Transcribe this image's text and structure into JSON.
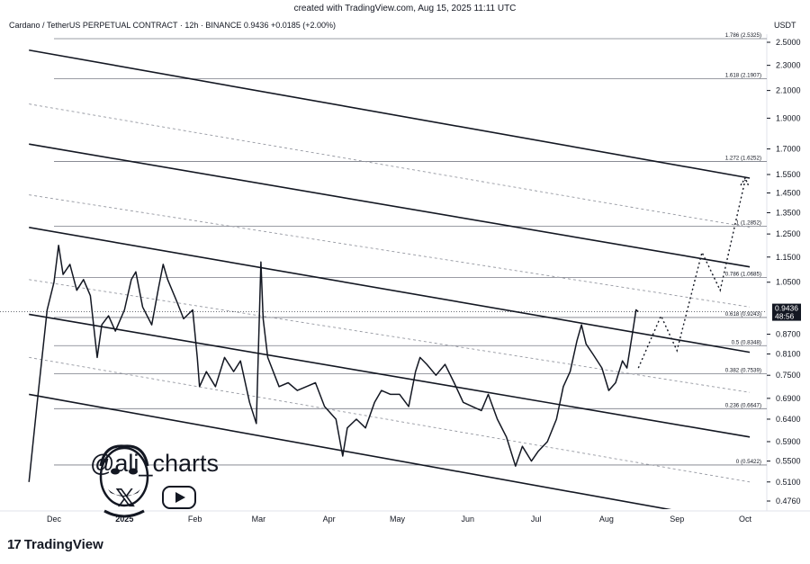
{
  "header": {
    "caption": "created with TradingView.com, Aug 15, 2025 11:11 UTC",
    "symbol_info": "Cardano / TetherUS PERPETUAL CONTRACT · 12h · BINANCE  0.9436  +0.0185 (+2.00%)",
    "currency": "USDT"
  },
  "branding": {
    "handle": "@ali_charts",
    "tv_logo_text": "TradingView",
    "tv_logo_mark": "17",
    "x_icon": "x-logo-icon",
    "youtube_icon": "youtube-icon",
    "avatar_icon": "avatar-caricature-icon"
  },
  "chart_data": {
    "type": "line",
    "symbol": "ADAUSDT",
    "timeframe": "12h",
    "y_scale": "log",
    "ylim": [
      0.45,
      2.62
    ],
    "y_ticks": [
      "2.5000",
      "2.3000",
      "2.1000",
      "1.9000",
      "1.7000",
      "1.5500",
      "1.4500",
      "1.3500",
      "1.2500",
      "1.1500",
      "1.0500",
      "0.8700",
      "0.8100",
      "0.7500",
      "0.6900",
      "0.6400",
      "0.5900",
      "0.5500",
      "0.5100",
      "0.4760"
    ],
    "x_ticks": [
      {
        "label": "Dec",
        "date": "2024-12-01",
        "bold": false
      },
      {
        "label": "2025",
        "date": "2025-01-01",
        "bold": true
      },
      {
        "label": "Feb",
        "date": "2025-02-01",
        "bold": false
      },
      {
        "label": "Mar",
        "date": "2025-03-01",
        "bold": false
      },
      {
        "label": "Apr",
        "date": "2025-04-01",
        "bold": false
      },
      {
        "label": "May",
        "date": "2025-05-01",
        "bold": false
      },
      {
        "label": "Jun",
        "date": "2025-06-01",
        "bold": false
      },
      {
        "label": "Jul",
        "date": "2025-07-01",
        "bold": false
      },
      {
        "label": "Aug",
        "date": "2025-08-01",
        "bold": false
      },
      {
        "label": "Sep",
        "date": "2025-09-01",
        "bold": false
      },
      {
        "label": "Oct",
        "date": "2025-10-01",
        "bold": false
      }
    ],
    "price_series": [
      {
        "date": "2024-11-20",
        "close": 0.51
      },
      {
        "date": "2024-11-24",
        "close": 0.7
      },
      {
        "date": "2024-11-28",
        "close": 0.95
      },
      {
        "date": "2024-12-01",
        "close": 1.05
      },
      {
        "date": "2024-12-03",
        "close": 1.2
      },
      {
        "date": "2024-12-05",
        "close": 1.08
      },
      {
        "date": "2024-12-08",
        "close": 1.12
      },
      {
        "date": "2024-12-11",
        "close": 1.02
      },
      {
        "date": "2024-12-14",
        "close": 1.06
      },
      {
        "date": "2024-12-17",
        "close": 1.0
      },
      {
        "date": "2024-12-19",
        "close": 0.86
      },
      {
        "date": "2024-12-20",
        "close": 0.8
      },
      {
        "date": "2024-12-22",
        "close": 0.9
      },
      {
        "date": "2024-12-25",
        "close": 0.93
      },
      {
        "date": "2024-12-28",
        "close": 0.88
      },
      {
        "date": "2025-01-01",
        "close": 0.95
      },
      {
        "date": "2025-01-04",
        "close": 1.06
      },
      {
        "date": "2025-01-06",
        "close": 1.09
      },
      {
        "date": "2025-01-09",
        "close": 0.96
      },
      {
        "date": "2025-01-13",
        "close": 0.9
      },
      {
        "date": "2025-01-16",
        "close": 1.03
      },
      {
        "date": "2025-01-18",
        "close": 1.12
      },
      {
        "date": "2025-01-20",
        "close": 1.06
      },
      {
        "date": "2025-01-24",
        "close": 0.98
      },
      {
        "date": "2025-01-27",
        "close": 0.92
      },
      {
        "date": "2025-01-31",
        "close": 0.95
      },
      {
        "date": "2025-02-02",
        "close": 0.8
      },
      {
        "date": "2025-02-03",
        "close": 0.72
      },
      {
        "date": "2025-02-06",
        "close": 0.76
      },
      {
        "date": "2025-02-10",
        "close": 0.72
      },
      {
        "date": "2025-02-14",
        "close": 0.8
      },
      {
        "date": "2025-02-18",
        "close": 0.76
      },
      {
        "date": "2025-02-21",
        "close": 0.79
      },
      {
        "date": "2025-02-25",
        "close": 0.68
      },
      {
        "date": "2025-02-28",
        "close": 0.63
      },
      {
        "date": "2025-03-02",
        "close": 1.13
      },
      {
        "date": "2025-03-03",
        "close": 0.92
      },
      {
        "date": "2025-03-05",
        "close": 0.8
      },
      {
        "date": "2025-03-10",
        "close": 0.72
      },
      {
        "date": "2025-03-14",
        "close": 0.73
      },
      {
        "date": "2025-03-18",
        "close": 0.71
      },
      {
        "date": "2025-03-22",
        "close": 0.72
      },
      {
        "date": "2025-03-26",
        "close": 0.73
      },
      {
        "date": "2025-03-30",
        "close": 0.67
      },
      {
        "date": "2025-04-04",
        "close": 0.64
      },
      {
        "date": "2025-04-07",
        "close": 0.56
      },
      {
        "date": "2025-04-09",
        "close": 0.62
      },
      {
        "date": "2025-04-13",
        "close": 0.64
      },
      {
        "date": "2025-04-17",
        "close": 0.62
      },
      {
        "date": "2025-04-21",
        "close": 0.68
      },
      {
        "date": "2025-04-24",
        "close": 0.71
      },
      {
        "date": "2025-04-28",
        "close": 0.7
      },
      {
        "date": "2025-05-02",
        "close": 0.7
      },
      {
        "date": "2025-05-06",
        "close": 0.67
      },
      {
        "date": "2025-05-09",
        "close": 0.76
      },
      {
        "date": "2025-05-11",
        "close": 0.8
      },
      {
        "date": "2025-05-14",
        "close": 0.78
      },
      {
        "date": "2025-05-18",
        "close": 0.75
      },
      {
        "date": "2025-05-22",
        "close": 0.78
      },
      {
        "date": "2025-05-26",
        "close": 0.73
      },
      {
        "date": "2025-05-30",
        "close": 0.68
      },
      {
        "date": "2025-06-03",
        "close": 0.67
      },
      {
        "date": "2025-06-07",
        "close": 0.66
      },
      {
        "date": "2025-06-10",
        "close": 0.7
      },
      {
        "date": "2025-06-14",
        "close": 0.64
      },
      {
        "date": "2025-06-18",
        "close": 0.6
      },
      {
        "date": "2025-06-22",
        "close": 0.54
      },
      {
        "date": "2025-06-25",
        "close": 0.58
      },
      {
        "date": "2025-06-29",
        "close": 0.55
      },
      {
        "date": "2025-07-02",
        "close": 0.57
      },
      {
        "date": "2025-07-06",
        "close": 0.59
      },
      {
        "date": "2025-07-10",
        "close": 0.64
      },
      {
        "date": "2025-07-13",
        "close": 0.72
      },
      {
        "date": "2025-07-16",
        "close": 0.76
      },
      {
        "date": "2025-07-19",
        "close": 0.85
      },
      {
        "date": "2025-07-21",
        "close": 0.9
      },
      {
        "date": "2025-07-23",
        "close": 0.84
      },
      {
        "date": "2025-07-26",
        "close": 0.81
      },
      {
        "date": "2025-07-30",
        "close": 0.77
      },
      {
        "date": "2025-08-02",
        "close": 0.71
      },
      {
        "date": "2025-08-05",
        "close": 0.73
      },
      {
        "date": "2025-08-08",
        "close": 0.79
      },
      {
        "date": "2025-08-10",
        "close": 0.77
      },
      {
        "date": "2025-08-13",
        "close": 0.9
      },
      {
        "date": "2025-08-14",
        "close": 0.95
      },
      {
        "date": "2025-08-15",
        "close": 0.9436
      }
    ],
    "projection_path": [
      {
        "date": "2025-08-15",
        "price": 0.77
      },
      {
        "date": "2025-08-25",
        "price": 0.93
      },
      {
        "date": "2025-09-01",
        "price": 0.82
      },
      {
        "date": "2025-09-12",
        "price": 1.17
      },
      {
        "date": "2025-09-20",
        "price": 1.02
      },
      {
        "date": "2025-10-01",
        "price": 1.52
      }
    ],
    "fib_levels": [
      {
        "label": "0 (0.5422)",
        "price": 0.5422
      },
      {
        "label": "0.236 (0.6647)",
        "price": 0.6647
      },
      {
        "label": "0.382 (0.7539)",
        "price": 0.7539
      },
      {
        "label": "0.5 (0.8348)",
        "price": 0.8348
      },
      {
        "label": "0.618 (0.9243)",
        "price": 0.9243
      },
      {
        "label": "0.786 (1.0685)",
        "price": 1.0685
      },
      {
        "label": "1 (1.2852)",
        "price": 1.2852
      },
      {
        "label": "1.272 (1.6252)",
        "price": 1.6252
      },
      {
        "label": "1.618 (2.1907)",
        "price": 2.1907
      },
      {
        "label": "1.786 (2.5325)",
        "price": 2.5325
      }
    ],
    "channel_lines": [
      {
        "style": "solid",
        "start": {
          "date": "2024-11-20",
          "price": 2.43
        },
        "end": {
          "date": "2025-10-03",
          "price": 1.53
        }
      },
      {
        "style": "dashed",
        "start": {
          "date": "2024-11-20",
          "price": 2.0
        },
        "end": {
          "date": "2025-10-03",
          "price": 1.28
        }
      },
      {
        "style": "solid",
        "start": {
          "date": "2024-11-20",
          "price": 1.73
        },
        "end": {
          "date": "2025-10-03",
          "price": 1.11
        }
      },
      {
        "style": "dashed",
        "start": {
          "date": "2024-11-20",
          "price": 1.44
        },
        "end": {
          "date": "2025-10-03",
          "price": 0.96
        }
      },
      {
        "style": "solid",
        "start": {
          "date": "2024-11-20",
          "price": 1.28
        },
        "end": {
          "date": "2025-10-03",
          "price": 0.815
        }
      },
      {
        "style": "dashed",
        "start": {
          "date": "2024-11-20",
          "price": 1.06
        },
        "end": {
          "date": "2025-10-03",
          "price": 0.705
        }
      },
      {
        "style": "solid",
        "start": {
          "date": "2024-11-20",
          "price": 0.935
        },
        "end": {
          "date": "2025-10-03",
          "price": 0.6
        }
      },
      {
        "style": "dashed",
        "start": {
          "date": "2024-11-20",
          "price": 0.8
        },
        "end": {
          "date": "2025-10-03",
          "price": 0.51
        }
      },
      {
        "style": "solid",
        "start": {
          "date": "2024-11-20",
          "price": 0.7
        },
        "end": {
          "date": "2025-09-15",
          "price": 0.45
        }
      }
    ],
    "last_price": {
      "value": "0.9436",
      "countdown": "48:56"
    },
    "colors": {
      "price_line": "#131722",
      "grid": "#e6e6e6",
      "label_box": "#131722"
    }
  }
}
